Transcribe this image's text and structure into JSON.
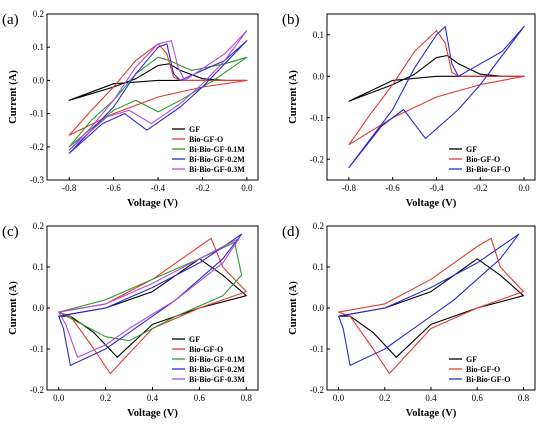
{
  "chart_data": [
    {
      "type": "line",
      "panel_label": "(a)",
      "xlabel": "Voltage (V)",
      "ylabel": "Current (A)",
      "xlim": [
        -0.9,
        0.05
      ],
      "ylim": [
        -0.3,
        0.2
      ],
      "xticks": [
        "-0.8",
        "-0.6",
        "-0.4",
        "-0.2",
        "0.0"
      ],
      "yticks": [
        "-0.3",
        "-0.2",
        "-0.1",
        "0.0",
        "0.1",
        "0.2"
      ],
      "grid": false,
      "legend_position": "bottom-right",
      "series": [
        {
          "name": "GF",
          "color": "#000000",
          "points": [
            [
              -0.8,
              -0.06
            ],
            [
              -0.7,
              -0.04
            ],
            [
              -0.6,
              -0.02
            ],
            [
              -0.5,
              0.005
            ],
            [
              -0.4,
              0.045
            ],
            [
              -0.35,
              0.05
            ],
            [
              -0.3,
              0.03
            ],
            [
              -0.2,
              0.005
            ],
            [
              -0.1,
              0.0
            ],
            [
              0.0,
              0.0
            ],
            [
              -0.2,
              0.0
            ],
            [
              -0.4,
              0.0
            ],
            [
              -0.6,
              -0.01
            ],
            [
              -0.8,
              -0.06
            ]
          ]
        },
        {
          "name": "Bio-GF-O",
          "color": "#e03c31",
          "points": [
            [
              -0.8,
              -0.165
            ],
            [
              -0.7,
              -0.09
            ],
            [
              -0.6,
              -0.02
            ],
            [
              -0.5,
              0.06
            ],
            [
              -0.4,
              0.11
            ],
            [
              -0.36,
              0.08
            ],
            [
              -0.33,
              0.01
            ],
            [
              -0.3,
              0.0
            ],
            [
              -0.1,
              0.0
            ],
            [
              0.0,
              0.0
            ],
            [
              -0.2,
              -0.02
            ],
            [
              -0.4,
              -0.05
            ],
            [
              -0.6,
              -0.1
            ],
            [
              -0.8,
              -0.165
            ]
          ]
        },
        {
          "name": "Bi-Bio-GF-0.1M",
          "color": "#2f9a2a",
          "points": [
            [
              -0.8,
              -0.2
            ],
            [
              -0.7,
              -0.12
            ],
            [
              -0.6,
              -0.06
            ],
            [
              -0.5,
              0.02
            ],
            [
              -0.4,
              0.07
            ],
            [
              -0.35,
              0.06
            ],
            [
              -0.25,
              0.03
            ],
            [
              -0.1,
              0.05
            ],
            [
              0.0,
              0.07
            ],
            [
              -0.15,
              0.0
            ],
            [
              -0.3,
              -0.06
            ],
            [
              -0.4,
              -0.095
            ],
            [
              -0.5,
              -0.06
            ],
            [
              -0.6,
              -0.09
            ],
            [
              -0.8,
              -0.2
            ]
          ]
        },
        {
          "name": "Bi-Bio-GF-0.2M",
          "color": "#2b2bd8",
          "points": [
            [
              -0.8,
              -0.22
            ],
            [
              -0.7,
              -0.15
            ],
            [
              -0.6,
              -0.08
            ],
            [
              -0.5,
              0.02
            ],
            [
              -0.4,
              0.1
            ],
            [
              -0.36,
              0.11
            ],
            [
              -0.33,
              0.02
            ],
            [
              -0.3,
              0.0
            ],
            [
              -0.1,
              0.06
            ],
            [
              0.0,
              0.12
            ],
            [
              -0.1,
              0.05
            ],
            [
              -0.2,
              -0.02
            ],
            [
              -0.3,
              -0.08
            ],
            [
              -0.45,
              -0.15
            ],
            [
              -0.55,
              -0.1
            ],
            [
              -0.65,
              -0.13
            ],
            [
              -0.8,
              -0.22
            ]
          ]
        },
        {
          "name": "Bi-Bio-GF-0.3M",
          "color": "#b44be0",
          "points": [
            [
              -0.8,
              -0.21
            ],
            [
              -0.7,
              -0.14
            ],
            [
              -0.6,
              -0.06
            ],
            [
              -0.5,
              0.04
            ],
            [
              -0.4,
              0.11
            ],
            [
              -0.34,
              0.12
            ],
            [
              -0.31,
              0.04
            ],
            [
              -0.28,
              0.0
            ],
            [
              -0.1,
              0.08
            ],
            [
              0.0,
              0.15
            ],
            [
              -0.1,
              0.06
            ],
            [
              -0.2,
              -0.01
            ],
            [
              -0.3,
              -0.07
            ],
            [
              -0.43,
              -0.13
            ],
            [
              -0.53,
              -0.09
            ],
            [
              -0.63,
              -0.11
            ],
            [
              -0.8,
              -0.21
            ]
          ]
        }
      ]
    },
    {
      "type": "line",
      "panel_label": "(b)",
      "xlabel": "Voltage (V)",
      "ylabel": "Current (A)",
      "xlim": [
        -0.9,
        0.05
      ],
      "ylim": [
        -0.25,
        0.15
      ],
      "xticks": [
        "-0.8",
        "-0.6",
        "-0.4",
        "-0.2",
        "0.0"
      ],
      "yticks": [
        "-0.2",
        "-0.1",
        "0.0",
        "0.1"
      ],
      "grid": false,
      "legend_position": "bottom-right",
      "series": [
        {
          "name": "GF",
          "color": "#000000",
          "points": [
            [
              -0.8,
              -0.06
            ],
            [
              -0.7,
              -0.04
            ],
            [
              -0.6,
              -0.02
            ],
            [
              -0.5,
              0.005
            ],
            [
              -0.4,
              0.045
            ],
            [
              -0.35,
              0.05
            ],
            [
              -0.3,
              0.03
            ],
            [
              -0.2,
              0.005
            ],
            [
              -0.1,
              0.0
            ],
            [
              0.0,
              0.0
            ],
            [
              -0.2,
              0.0
            ],
            [
              -0.4,
              0.0
            ],
            [
              -0.6,
              -0.01
            ],
            [
              -0.8,
              -0.06
            ]
          ]
        },
        {
          "name": "Bio-GF-O",
          "color": "#e03c31",
          "points": [
            [
              -0.8,
              -0.165
            ],
            [
              -0.7,
              -0.09
            ],
            [
              -0.6,
              -0.02
            ],
            [
              -0.5,
              0.06
            ],
            [
              -0.4,
              0.11
            ],
            [
              -0.36,
              0.08
            ],
            [
              -0.33,
              0.01
            ],
            [
              -0.3,
              0.0
            ],
            [
              -0.1,
              0.0
            ],
            [
              0.0,
              0.0
            ],
            [
              -0.2,
              -0.02
            ],
            [
              -0.4,
              -0.05
            ],
            [
              -0.6,
              -0.1
            ],
            [
              -0.8,
              -0.165
            ]
          ]
        },
        {
          "name": "Bi-Bio-GF-O",
          "color": "#2b2bd8",
          "points": [
            [
              -0.8,
              -0.22
            ],
            [
              -0.7,
              -0.15
            ],
            [
              -0.6,
              -0.08
            ],
            [
              -0.5,
              0.02
            ],
            [
              -0.4,
              0.1
            ],
            [
              -0.36,
              0.12
            ],
            [
              -0.33,
              0.03
            ],
            [
              -0.3,
              0.0
            ],
            [
              -0.1,
              0.06
            ],
            [
              0.0,
              0.12
            ],
            [
              -0.1,
              0.05
            ],
            [
              -0.2,
              -0.02
            ],
            [
              -0.3,
              -0.08
            ],
            [
              -0.45,
              -0.15
            ],
            [
              -0.55,
              -0.08
            ],
            [
              -0.65,
              -0.12
            ],
            [
              -0.8,
              -0.22
            ]
          ]
        }
      ]
    },
    {
      "type": "line",
      "panel_label": "(c)",
      "xlabel": "Voltage (V)",
      "ylabel": "Current (A)",
      "xlim": [
        -0.05,
        0.85
      ],
      "ylim": [
        -0.2,
        0.2
      ],
      "xticks": [
        "0.0",
        "0.2",
        "0.4",
        "0.6",
        "0.8"
      ],
      "yticks": [
        "-0.2",
        "-0.1",
        "0.0",
        "0.1",
        "0.2"
      ],
      "grid": false,
      "legend_position": "bottom-right",
      "series": [
        {
          "name": "GF",
          "color": "#000000",
          "points": [
            [
              0.0,
              -0.02
            ],
            [
              0.2,
              0.0
            ],
            [
              0.4,
              0.04
            ],
            [
              0.6,
              0.12
            ],
            [
              0.7,
              0.08
            ],
            [
              0.8,
              0.03
            ],
            [
              0.6,
              0.0
            ],
            [
              0.4,
              -0.04
            ],
            [
              0.25,
              -0.12
            ],
            [
              0.15,
              -0.06
            ],
            [
              0.05,
              -0.02
            ],
            [
              0.0,
              -0.02
            ]
          ]
        },
        {
          "name": "Bio-GF-O",
          "color": "#e03c31",
          "points": [
            [
              0.0,
              -0.01
            ],
            [
              0.2,
              0.01
            ],
            [
              0.4,
              0.07
            ],
            [
              0.6,
              0.15
            ],
            [
              0.65,
              0.17
            ],
            [
              0.7,
              0.1
            ],
            [
              0.8,
              0.04
            ],
            [
              0.6,
              0.0
            ],
            [
              0.4,
              -0.05
            ],
            [
              0.22,
              -0.16
            ],
            [
              0.15,
              -0.1
            ],
            [
              0.05,
              -0.02
            ],
            [
              0.0,
              -0.01
            ]
          ]
        },
        {
          "name": "Bi-Bio-GF-0.1M",
          "color": "#2f9a2a",
          "points": [
            [
              0.0,
              -0.01
            ],
            [
              0.2,
              0.02
            ],
            [
              0.4,
              0.07
            ],
            [
              0.6,
              0.12
            ],
            [
              0.75,
              0.16
            ],
            [
              0.78,
              0.08
            ],
            [
              0.7,
              0.03
            ],
            [
              0.5,
              -0.02
            ],
            [
              0.3,
              -0.08
            ],
            [
              0.2,
              -0.07
            ],
            [
              0.1,
              -0.04
            ],
            [
              0.0,
              -0.01
            ]
          ]
        },
        {
          "name": "Bi-Bio-GF-0.2M",
          "color": "#2b2bd8",
          "points": [
            [
              0.0,
              -0.02
            ],
            [
              0.2,
              0.0
            ],
            [
              0.4,
              0.05
            ],
            [
              0.6,
              0.11
            ],
            [
              0.78,
              0.18
            ],
            [
              0.7,
              0.12
            ],
            [
              0.5,
              0.02
            ],
            [
              0.3,
              -0.06
            ],
            [
              0.2,
              -0.1
            ],
            [
              0.05,
              -0.14
            ],
            [
              0.02,
              -0.05
            ],
            [
              0.0,
              -0.02
            ]
          ]
        },
        {
          "name": "Bi-Bio-GF-0.3M",
          "color": "#b44be0",
          "points": [
            [
              0.0,
              -0.01
            ],
            [
              0.2,
              0.01
            ],
            [
              0.4,
              0.06
            ],
            [
              0.6,
              0.12
            ],
            [
              0.77,
              0.17
            ],
            [
              0.7,
              0.11
            ],
            [
              0.5,
              0.02
            ],
            [
              0.3,
              -0.05
            ],
            [
              0.2,
              -0.09
            ],
            [
              0.08,
              -0.12
            ],
            [
              0.03,
              -0.04
            ],
            [
              0.0,
              -0.01
            ]
          ]
        }
      ]
    },
    {
      "type": "line",
      "panel_label": "(d)",
      "xlabel": "Voltage (V)",
      "ylabel": "Current (A)",
      "xlim": [
        -0.05,
        0.85
      ],
      "ylim": [
        -0.2,
        0.2
      ],
      "xticks": [
        "0.0",
        "0.2",
        "0.4",
        "0.6",
        "0.8"
      ],
      "yticks": [
        "-0.2",
        "-0.1",
        "0.0",
        "0.1",
        "0.2"
      ],
      "grid": false,
      "legend_position": "bottom-right",
      "series": [
        {
          "name": "GF",
          "color": "#000000",
          "points": [
            [
              0.0,
              -0.02
            ],
            [
              0.2,
              0.0
            ],
            [
              0.4,
              0.04
            ],
            [
              0.6,
              0.12
            ],
            [
              0.7,
              0.08
            ],
            [
              0.8,
              0.03
            ],
            [
              0.6,
              0.0
            ],
            [
              0.4,
              -0.04
            ],
            [
              0.25,
              -0.12
            ],
            [
              0.15,
              -0.06
            ],
            [
              0.05,
              -0.02
            ],
            [
              0.0,
              -0.02
            ]
          ]
        },
        {
          "name": "Bio-GF-O",
          "color": "#e03c31",
          "points": [
            [
              0.0,
              -0.01
            ],
            [
              0.2,
              0.01
            ],
            [
              0.4,
              0.07
            ],
            [
              0.6,
              0.15
            ],
            [
              0.66,
              0.17
            ],
            [
              0.7,
              0.1
            ],
            [
              0.8,
              0.04
            ],
            [
              0.6,
              0.0
            ],
            [
              0.4,
              -0.05
            ],
            [
              0.22,
              -0.16
            ],
            [
              0.15,
              -0.1
            ],
            [
              0.05,
              -0.02
            ],
            [
              0.0,
              -0.01
            ]
          ]
        },
        {
          "name": "Bi-Bio-GF-O",
          "color": "#2b2bd8",
          "points": [
            [
              0.0,
              -0.02
            ],
            [
              0.2,
              0.0
            ],
            [
              0.4,
              0.05
            ],
            [
              0.6,
              0.11
            ],
            [
              0.78,
              0.18
            ],
            [
              0.7,
              0.12
            ],
            [
              0.5,
              0.02
            ],
            [
              0.3,
              -0.06
            ],
            [
              0.2,
              -0.1
            ],
            [
              0.05,
              -0.14
            ],
            [
              0.02,
              -0.05
            ],
            [
              0.0,
              -0.02
            ]
          ]
        }
      ]
    }
  ]
}
